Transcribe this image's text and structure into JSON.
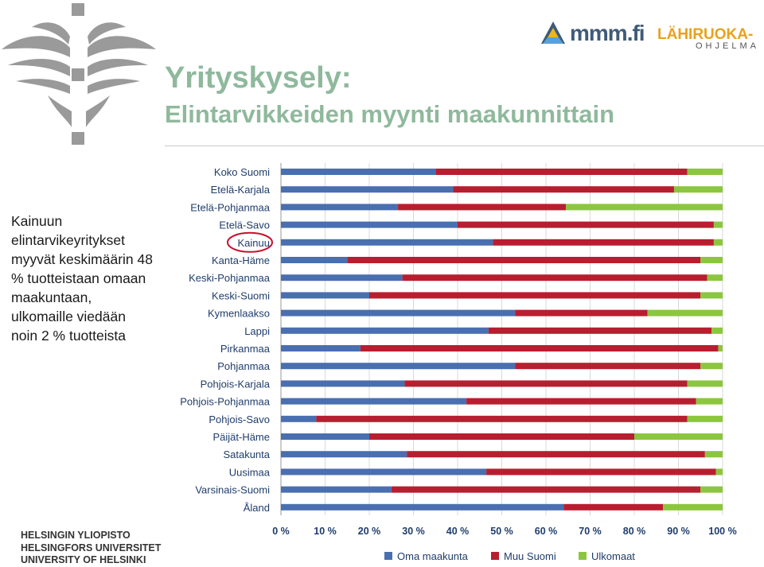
{
  "header": {
    "title": "Yrityskysely:",
    "subtitle": "Elintarvikkeiden myynti maakunnittain"
  },
  "logos": {
    "mmm": "mmm.fi",
    "lahiruoka": "LÄHIRUOKA-",
    "lahiruoka_sub": "OHJELMA",
    "left_logo_icon": "flame-cross-icon"
  },
  "side_text": "Kainuun elintarvikeyritykset myyvät keskimäärin 48 % tuotteistaan omaan maakuntaan, ulkomaille viedään noin 2 % tuotteista",
  "university": {
    "line1": "HELSINGIN YLIOPISTO",
    "line2": "HELSINGFORS UNIVERSITET",
    "line3": "UNIVERSITY OF HELSINKI"
  },
  "colors": {
    "title": "#8fb99c",
    "oma": "#4a6fb0",
    "muu": "#b81e2f",
    "ulko": "#8cc63f",
    "highlight_circle": "#c8102e"
  },
  "chart_data": {
    "type": "bar",
    "orientation": "horizontal",
    "stacked": "percent",
    "categories": [
      "Koko Suomi",
      "Etelä-Karjala",
      "Etelä-Pohjanmaa",
      "Etelä-Savo",
      "Kainuu",
      "Kanta-Häme",
      "Keski-Pohjanmaa",
      "Keski-Suomi",
      "Kymenlaakso",
      "Lappi",
      "Pirkanmaa",
      "Pohjanmaa",
      "Pohjois-Karjala",
      "Pohjois-Pohjanmaa",
      "Pohjois-Savo",
      "Päijät-Häme",
      "Satakunta",
      "Uusimaa",
      "Varsinais-Suomi",
      "Åland"
    ],
    "series": [
      {
        "name": "Oma maakunta",
        "color": "#4a6fb0",
        "values": [
          35,
          39,
          26.5,
          40,
          48,
          15,
          27.5,
          20,
          53,
          47,
          18,
          53,
          28,
          42,
          8,
          20,
          28.5,
          46.5,
          25,
          64
        ]
      },
      {
        "name": "Muu Suomi",
        "color": "#b81e2f",
        "values": [
          57,
          50,
          38,
          58,
          50,
          80,
          69,
          75,
          30,
          50.5,
          81,
          42,
          64,
          52,
          84,
          60,
          67.5,
          52,
          70,
          22.5
        ]
      },
      {
        "name": "Ulkomaat",
        "color": "#8cc63f",
        "values": [
          8,
          11,
          35.5,
          2,
          2,
          5,
          3.5,
          5,
          17,
          2.5,
          1,
          5,
          8,
          6,
          8,
          20,
          4,
          1.5,
          5,
          13.5
        ]
      }
    ],
    "xticks": [
      "0 %",
      "10 %",
      "20 %",
      "30 %",
      "40 %",
      "50 %",
      "60 %",
      "70 %",
      "80 %",
      "90 %",
      "100 %"
    ],
    "xlim": [
      0,
      100
    ],
    "grid": true,
    "legend_position": "bottom",
    "highlight": "Kainuu"
  }
}
